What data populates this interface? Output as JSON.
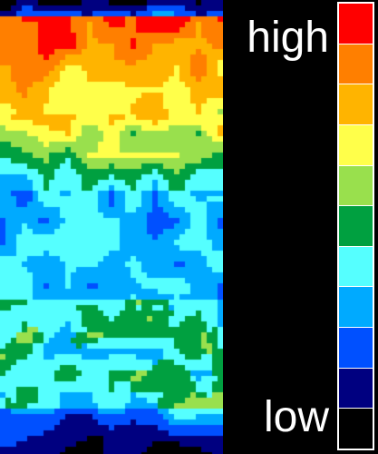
{
  "labels": {
    "high": "high",
    "low": "low"
  },
  "colorbar": {
    "colors": [
      "#ff0000",
      "#ff7f00",
      "#ffb400",
      "#ffff4a",
      "#99e04d",
      "#00a040",
      "#55ffff",
      "#00aaff",
      "#0050ff",
      "#000080",
      "#000000"
    ]
  },
  "heatmap": {
    "palette": [
      "#000000",
      "#000080",
      "#0050ff",
      "#00aaff",
      "#55ffff",
      "#00a040",
      "#99e04d",
      "#ffff4a",
      "#ffb400",
      "#ff7f00",
      "#ff0000"
    ]
  }
}
